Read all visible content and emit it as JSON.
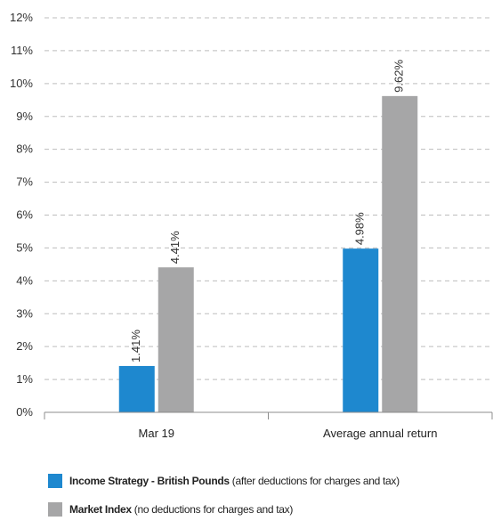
{
  "chart_data": {
    "type": "bar",
    "categories": [
      "Mar 19",
      "Average annual return"
    ],
    "series": [
      {
        "name": "Income Strategy - British Pounds",
        "note": "(after deductions for charges and tax)",
        "color": "#1e88cf",
        "values": [
          1.41,
          4.98
        ],
        "labels": [
          "1.41%",
          "4.98%"
        ]
      },
      {
        "name": "Market Index",
        "note": "(no deductions for charges and tax)",
        "color": "#a6a6a7",
        "values": [
          4.41,
          9.62
        ],
        "labels": [
          "4.41%",
          "9.62%"
        ]
      }
    ],
    "ylim": [
      0,
      12
    ],
    "yticks": [
      "0%",
      "1%",
      "2%",
      "3%",
      "4%",
      "5%",
      "6%",
      "7%",
      "8%",
      "9%",
      "10%",
      "11%",
      "12%"
    ],
    "grid": true,
    "legend_position": "bottom"
  }
}
